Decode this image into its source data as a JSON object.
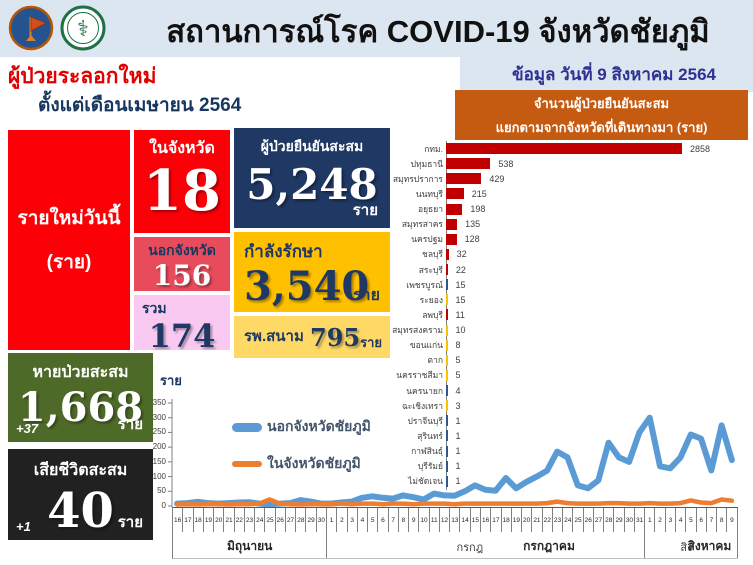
{
  "header": {
    "title": "สถานการณ์โรค COVID-19 จังหวัดชัยภูมิ",
    "wave_label": "ผู้ป่วยระลอกใหม่",
    "since_label": "ตั้งแต่เดือนเมษายน 2564",
    "date_label": "ข้อมูล วันที่ 9 สิงหาคม 2564",
    "logo_left": "chaiyaphum-provincial-seal",
    "logo_right": "ministry-of-public-health-logo"
  },
  "colors": {
    "band": "#dce6f1",
    "red": "#fb0007",
    "salmon": "#e84c5c",
    "pink": "#f9c9f2",
    "navy": "#1f3864",
    "gold": "#ffc000",
    "light_yellow": "#ffd966",
    "green": "#4e6a28",
    "black": "#212121",
    "orange_box": "#c55a11",
    "bar_red": "#c00000",
    "bar_blue": "#2f5597",
    "bar_yellow": "#ffc000",
    "line_blue": "#5b9bd5",
    "line_orange": "#ed7d31"
  },
  "stats": {
    "new_today": {
      "label": "รายใหม่วันนี้",
      "unit": "(ราย)"
    },
    "in_province": {
      "label": "ในจังหวัด",
      "value": "18"
    },
    "out_province": {
      "label": "นอกจังหวัด",
      "value": "156"
    },
    "total": {
      "label": "รวม",
      "value": "174"
    },
    "cumulative": {
      "label": "ผู้ป่วยยืนยันสะสม",
      "value": "5,248",
      "unit": "ราย"
    },
    "treating": {
      "label": "กำลังรักษา",
      "value": "3,540",
      "unit": "ราย"
    },
    "field_hospital": {
      "label": "รพ.สนาม",
      "value": "795",
      "unit": "ราย"
    },
    "recovered": {
      "label": "หายป่วยสะสม",
      "value": "1,668",
      "delta": "+37",
      "unit": "ราย"
    },
    "deaths": {
      "label": "เสียชีวิตสะสม",
      "value": "40",
      "delta": "+1",
      "unit": "ราย"
    }
  },
  "chart_data": [
    {
      "type": "bar",
      "orientation": "horizontal",
      "title_lines": [
        "จำนวนผู้ป่วยยืนยันสะสม",
        "แยกตามจากจังหวัดที่เดินทางมา  (ราย)"
      ],
      "categories": [
        "กทม.",
        "ปทุมธานี",
        "สมุทรปราการ",
        "นนทบุรี",
        "อยุธยา",
        "สมุทรสาคร",
        "นครปฐม",
        "ชลบุรี",
        "สระบุรี",
        "เพชรบูรณ์",
        "ระยอง",
        "ลพบุรี",
        "สมุทรสงคราม",
        "ขอนแก่น",
        "ตาก",
        "นครราชสีมา",
        "นครนายก",
        "ฉะเชิงเทรา",
        "ปราจีนบุรี",
        "สุรินทร์",
        "กาฬสินธุ์",
        "บุรีรัมย์",
        "ไม่ชัดเจน"
      ],
      "values": [
        2858,
        538,
        429,
        215,
        198,
        135,
        128,
        32,
        22,
        15,
        15,
        11,
        10,
        8,
        5,
        5,
        4,
        3,
        1,
        1,
        1,
        1,
        1
      ],
      "bar_colors": [
        "#c00000",
        "#c00000",
        "#c00000",
        "#c00000",
        "#c00000",
        "#c00000",
        "#c00000",
        "#c00000",
        "#c00000",
        "#2f5597",
        "#ffc000",
        "#c00000",
        "#ffc000",
        "#ffc000",
        "#ffc000",
        "#ffc000",
        "#2f5597",
        "#ffc000",
        "#2f5597",
        "#2f5597",
        "#2f5597",
        "#2f5597",
        "#2f5597"
      ],
      "xlim": [
        0,
        2858
      ],
      "grid": false,
      "value_labels": true
    },
    {
      "type": "line",
      "ylabel": "ราย",
      "ylim": [
        0,
        350
      ],
      "yticks": [
        0,
        50,
        100,
        150,
        200,
        250,
        300,
        350
      ],
      "grid": false,
      "legend_position": "inside-upper-left",
      "x_day_labels": [
        "16",
        "17",
        "18",
        "19",
        "20",
        "21",
        "22",
        "23",
        "24",
        "25",
        "26",
        "27",
        "28",
        "29",
        "30",
        "1",
        "2",
        "3",
        "4",
        "5",
        "6",
        "7",
        "8",
        "9",
        "10",
        "11",
        "12",
        "13",
        "14",
        "15",
        "16",
        "17",
        "18",
        "19",
        "20",
        "21",
        "22",
        "23",
        "24",
        "25",
        "26",
        "27",
        "28",
        "29",
        "30",
        "31",
        "1",
        "2",
        "3",
        "4",
        "5",
        "6",
        "7",
        "8",
        "9"
      ],
      "month_groups": [
        {
          "label": "มิถุนายน",
          "days": 15
        },
        {
          "label": "กรกฎาคม",
          "label_secondary": "กรกฎ",
          "days": 31
        },
        {
          "label": "สิงหาคม",
          "label_secondary": "สิง",
          "days": 9
        }
      ],
      "series": [
        {
          "name": "นอกจังหวัดชัยภูมิ",
          "color": "#5b9bd5",
          "values": [
            8,
            10,
            14,
            10,
            8,
            10,
            12,
            13,
            8,
            6,
            8,
            10,
            20,
            15,
            8,
            8,
            12,
            15,
            28,
            33,
            28,
            25,
            36,
            30,
            22,
            42,
            36,
            35,
            50,
            70,
            55,
            52,
            95,
            60,
            82,
            100,
            120,
            185,
            165,
            70,
            60,
            87,
            215,
            165,
            150,
            250,
            300,
            135,
            128,
            165,
            243,
            229,
            121,
            274,
            156
          ]
        },
        {
          "name": "ในจังหวัดชัยภูมิ",
          "color": "#ed7d31",
          "values": [
            5,
            6,
            5,
            6,
            6,
            5,
            6,
            6,
            8,
            22,
            8,
            6,
            5,
            6,
            6,
            6,
            8,
            6,
            8,
            8,
            6,
            8,
            8,
            6,
            8,
            8,
            8,
            6,
            8,
            8,
            8,
            8,
            8,
            8,
            8,
            8,
            10,
            15,
            10,
            8,
            8,
            8,
            10,
            10,
            8,
            8,
            10,
            8,
            8,
            10,
            19,
            12,
            10,
            22,
            18
          ]
        }
      ]
    }
  ]
}
